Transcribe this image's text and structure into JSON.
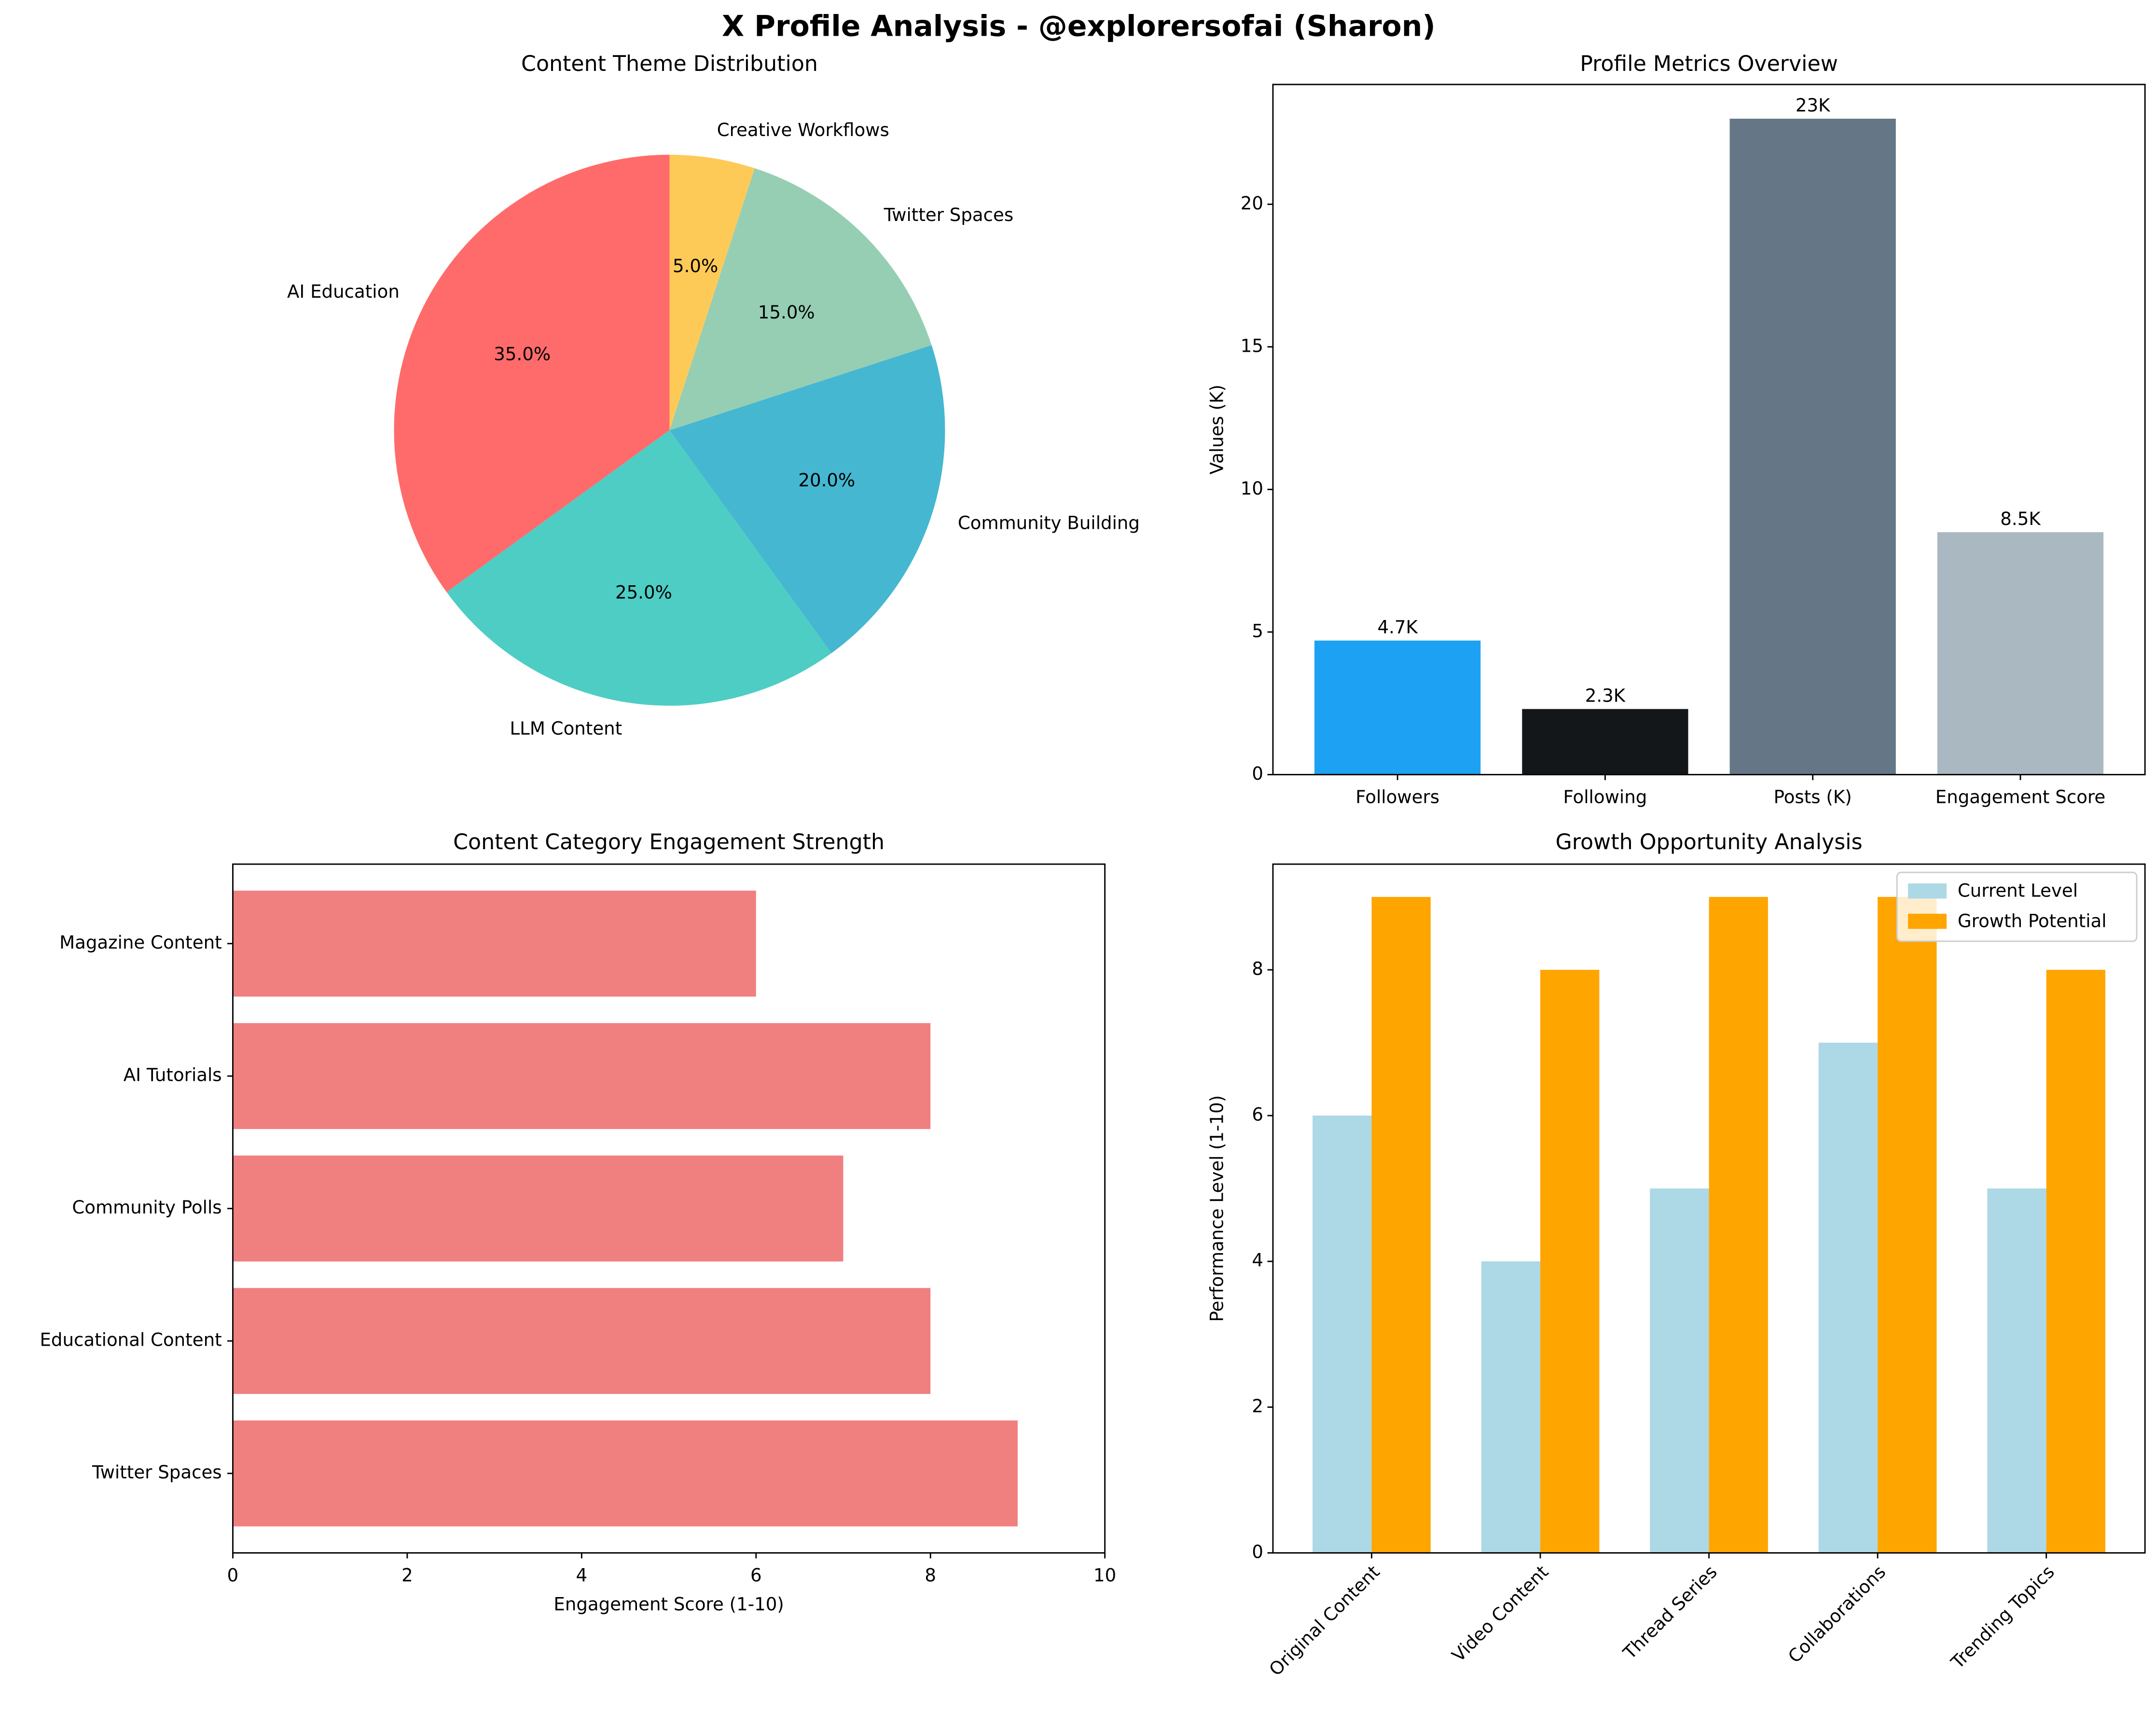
{
  "title": "X Profile Analysis - @explorersofai (Sharon)",
  "chart_data": [
    {
      "type": "pie",
      "title": "Content Theme Distribution",
      "categories": [
        "AI Education",
        "LLM Content",
        "Community Building",
        "Twitter Spaces",
        "Creative Workflows"
      ],
      "values": [
        35,
        25,
        20,
        15,
        5
      ],
      "value_labels": [
        "35.0%",
        "25.0%",
        "20.0%",
        "15.0%",
        "5.0%"
      ],
      "colors": [
        "#ff6b6b",
        "#4ecdc4",
        "#45b7d1",
        "#96ceb4",
        "#feca57"
      ]
    },
    {
      "type": "bar",
      "title": "Profile Metrics Overview",
      "ylabel": "Values (K)",
      "categories": [
        "Followers",
        "Following",
        "Posts (K)",
        "Engagement Score"
      ],
      "values": [
        4.7,
        2.3,
        23,
        8.5
      ],
      "value_labels": [
        "4.7K",
        "2.3K",
        "23K",
        "8.5K"
      ],
      "colors": [
        "#1da1f2",
        "#14171a",
        "#657786",
        "#aab8c2"
      ],
      "ylim": [
        0,
        24.2
      ],
      "yticks": [
        0,
        5,
        10,
        15,
        20
      ]
    },
    {
      "type": "barh",
      "title": "Content Category Engagement Strength",
      "xlabel": "Engagement Score (1-10)",
      "categories": [
        "Twitter Spaces",
        "Educational Content",
        "Community Polls",
        "AI Tutorials",
        "Magazine Content"
      ],
      "values": [
        9,
        8,
        7,
        8,
        6
      ],
      "color": "#f08080",
      "xlim": [
        0,
        10
      ],
      "xticks": [
        0,
        2,
        4,
        6,
        8,
        10
      ]
    },
    {
      "type": "grouped_bar",
      "title": "Growth Opportunity Analysis",
      "ylabel": "Performance Level (1-10)",
      "categories": [
        "Original Content",
        "Video Content",
        "Thread Series",
        "Collaborations",
        "Trending Topics"
      ],
      "series": [
        {
          "name": "Current Level",
          "color": "#add8e6",
          "values": [
            6,
            4,
            5,
            7,
            5
          ]
        },
        {
          "name": "Growth Potential",
          "color": "#ffa500",
          "values": [
            9,
            8,
            9,
            9,
            8
          ]
        }
      ],
      "ylim": [
        0,
        9.45
      ],
      "yticks": [
        0,
        2,
        4,
        6,
        8
      ],
      "legend": "upper right"
    }
  ]
}
